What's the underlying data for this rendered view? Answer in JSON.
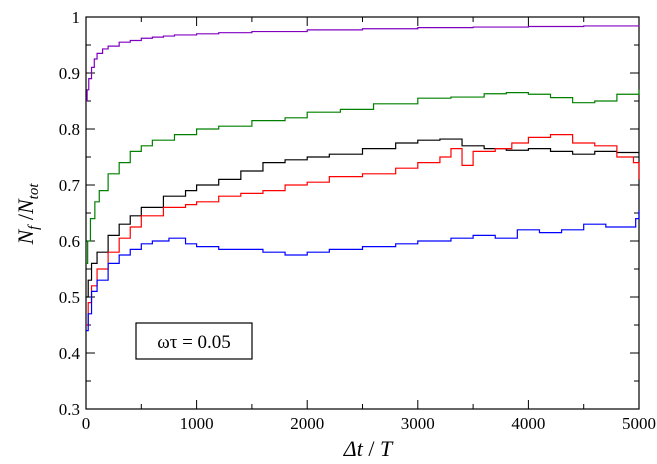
{
  "chart_data": {
    "type": "line",
    "xlim": [
      0,
      5000
    ],
    "ylim": [
      0.3,
      1.0
    ],
    "x_ticks": [
      0,
      1000,
      2000,
      3000,
      4000,
      5000
    ],
    "x_tick_labels": [
      "0",
      "1000",
      "2000",
      "3000",
      "4000",
      "5000"
    ],
    "y_ticks": [
      0.3,
      0.4,
      0.5,
      0.6,
      0.7,
      0.8,
      0.9,
      1.0
    ],
    "y_tick_labels": [
      "0.3",
      "0.4",
      "0.5",
      "0.6",
      "0.7",
      "0.8",
      "0.9",
      "1"
    ],
    "xlabel": {
      "main": "Δt",
      "sep": " / ",
      "var": "T"
    },
    "ylabel": {
      "n1": "N",
      "sub1": "f",
      "sep": " /",
      "n2": "N",
      "sub2": "tot"
    },
    "grid": false,
    "legend": "none",
    "annotation": "ωτ = 0.05",
    "series": [
      {
        "color": "#8000c0",
        "points": [
          [
            0,
            0.85
          ],
          [
            10,
            0.87
          ],
          [
            25,
            0.89
          ],
          [
            50,
            0.91
          ],
          [
            75,
            0.925
          ],
          [
            100,
            0.935
          ],
          [
            150,
            0.943
          ],
          [
            200,
            0.948
          ],
          [
            300,
            0.955
          ],
          [
            400,
            0.958
          ],
          [
            500,
            0.962
          ],
          [
            600,
            0.964
          ],
          [
            700,
            0.966
          ],
          [
            800,
            0.968
          ],
          [
            1000,
            0.97
          ],
          [
            1200,
            0.972
          ],
          [
            1500,
            0.974
          ],
          [
            2000,
            0.977
          ],
          [
            2500,
            0.979
          ],
          [
            3000,
            0.981
          ],
          [
            3500,
            0.982
          ],
          [
            4000,
            0.983
          ],
          [
            4500,
            0.984
          ],
          [
            5000,
            0.985
          ]
        ]
      },
      {
        "color": "#008000",
        "points": [
          [
            0,
            0.56
          ],
          [
            15,
            0.6
          ],
          [
            40,
            0.64
          ],
          [
            80,
            0.67
          ],
          [
            120,
            0.69
          ],
          [
            200,
            0.72
          ],
          [
            300,
            0.74
          ],
          [
            400,
            0.76
          ],
          [
            500,
            0.77
          ],
          [
            600,
            0.78
          ],
          [
            800,
            0.79
          ],
          [
            1000,
            0.8
          ],
          [
            1200,
            0.805
          ],
          [
            1500,
            0.815
          ],
          [
            1800,
            0.82
          ],
          [
            2000,
            0.83
          ],
          [
            2300,
            0.835
          ],
          [
            2600,
            0.845
          ],
          [
            3000,
            0.855
          ],
          [
            3300,
            0.857
          ],
          [
            3600,
            0.863
          ],
          [
            3800,
            0.865
          ],
          [
            4000,
            0.862
          ],
          [
            4200,
            0.856
          ],
          [
            4400,
            0.847
          ],
          [
            4600,
            0.85
          ],
          [
            4800,
            0.862
          ],
          [
            5000,
            0.87
          ]
        ]
      },
      {
        "color": "#000000",
        "points": [
          [
            0,
            0.5
          ],
          [
            20,
            0.53
          ],
          [
            50,
            0.56
          ],
          [
            100,
            0.58
          ],
          [
            200,
            0.61
          ],
          [
            300,
            0.63
          ],
          [
            400,
            0.645
          ],
          [
            500,
            0.66
          ],
          [
            700,
            0.68
          ],
          [
            900,
            0.69
          ],
          [
            1000,
            0.7
          ],
          [
            1200,
            0.71
          ],
          [
            1400,
            0.725
          ],
          [
            1600,
            0.74
          ],
          [
            1800,
            0.745
          ],
          [
            2000,
            0.75
          ],
          [
            2200,
            0.755
          ],
          [
            2500,
            0.765
          ],
          [
            2800,
            0.775
          ],
          [
            3000,
            0.78
          ],
          [
            3200,
            0.782
          ],
          [
            3400,
            0.77
          ],
          [
            3600,
            0.765
          ],
          [
            3800,
            0.762
          ],
          [
            4000,
            0.765
          ],
          [
            4200,
            0.76
          ],
          [
            4400,
            0.755
          ],
          [
            4600,
            0.76
          ],
          [
            4800,
            0.758
          ],
          [
            5000,
            0.758
          ]
        ]
      },
      {
        "color": "#ff0000",
        "points": [
          [
            0,
            0.45
          ],
          [
            20,
            0.49
          ],
          [
            50,
            0.52
          ],
          [
            100,
            0.55
          ],
          [
            200,
            0.58
          ],
          [
            300,
            0.605
          ],
          [
            400,
            0.625
          ],
          [
            500,
            0.645
          ],
          [
            700,
            0.66
          ],
          [
            900,
            0.665
          ],
          [
            1000,
            0.67
          ],
          [
            1200,
            0.68
          ],
          [
            1400,
            0.685
          ],
          [
            1600,
            0.69
          ],
          [
            1800,
            0.7
          ],
          [
            2000,
            0.705
          ],
          [
            2200,
            0.715
          ],
          [
            2500,
            0.72
          ],
          [
            2800,
            0.73
          ],
          [
            3000,
            0.74
          ],
          [
            3200,
            0.75
          ],
          [
            3300,
            0.765
          ],
          [
            3400,
            0.735
          ],
          [
            3500,
            0.76
          ],
          [
            3700,
            0.765
          ],
          [
            3850,
            0.775
          ],
          [
            4000,
            0.785
          ],
          [
            4200,
            0.79
          ],
          [
            4400,
            0.775
          ],
          [
            4600,
            0.77
          ],
          [
            4800,
            0.75
          ],
          [
            4950,
            0.74
          ],
          [
            5000,
            0.71
          ]
        ]
      },
      {
        "color": "#0000ff",
        "points": [
          [
            0,
            0.44
          ],
          [
            20,
            0.47
          ],
          [
            50,
            0.51
          ],
          [
            100,
            0.53
          ],
          [
            200,
            0.56
          ],
          [
            300,
            0.575
          ],
          [
            400,
            0.585
          ],
          [
            500,
            0.595
          ],
          [
            600,
            0.6
          ],
          [
            750,
            0.605
          ],
          [
            900,
            0.595
          ],
          [
            1000,
            0.59
          ],
          [
            1200,
            0.585
          ],
          [
            1400,
            0.585
          ],
          [
            1600,
            0.58
          ],
          [
            1800,
            0.575
          ],
          [
            2000,
            0.58
          ],
          [
            2200,
            0.585
          ],
          [
            2500,
            0.59
          ],
          [
            2800,
            0.595
          ],
          [
            3000,
            0.6
          ],
          [
            3300,
            0.605
          ],
          [
            3500,
            0.61
          ],
          [
            3700,
            0.605
          ],
          [
            3900,
            0.62
          ],
          [
            4100,
            0.615
          ],
          [
            4300,
            0.62
          ],
          [
            4500,
            0.63
          ],
          [
            4700,
            0.625
          ],
          [
            4900,
            0.625
          ],
          [
            4970,
            0.64
          ],
          [
            5000,
            0.655
          ]
        ]
      }
    ]
  }
}
